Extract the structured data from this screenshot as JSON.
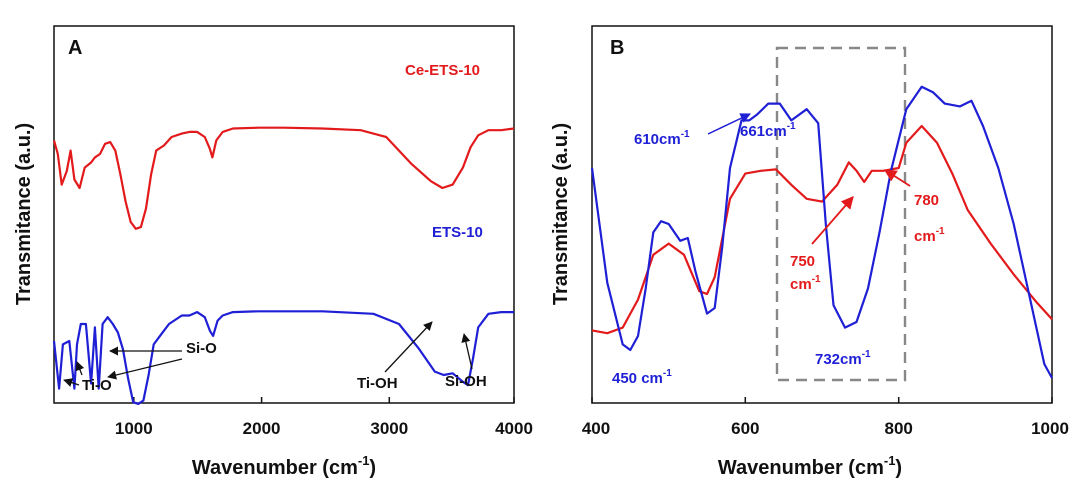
{
  "chart_data": [
    {
      "panel_label": "A",
      "type": "line",
      "xlabel": "Wavenumber (cm",
      "xlabel_sup": "-1",
      "xlabel_suffix": ")",
      "ylabel": "Transmitance (a.u.)",
      "xlim": [
        400,
        4000
      ],
      "xticks": [
        "1000",
        "2000",
        "3000",
        "4000"
      ],
      "colors": {
        "Ce-ETS-10": "#e31a1c",
        "ETS-10": "#1f1fd6"
      },
      "series": [
        {
          "name": "Ce-ETS-10",
          "points": [
            [
              400,
              0.52
            ],
            [
              430,
              0.6
            ],
            [
              460,
              0.78
            ],
            [
              500,
              0.7
            ],
            [
              530,
              0.58
            ],
            [
              560,
              0.75
            ],
            [
              600,
              0.8
            ],
            [
              640,
              0.68
            ],
            [
              690,
              0.65
            ],
            [
              720,
              0.62
            ],
            [
              760,
              0.6
            ],
            [
              800,
              0.54
            ],
            [
              840,
              0.53
            ],
            [
              880,
              0.58
            ],
            [
              920,
              0.72
            ],
            [
              960,
              0.88
            ],
            [
              1000,
              1.0
            ],
            [
              1040,
              1.04
            ],
            [
              1080,
              1.03
            ],
            [
              1120,
              0.92
            ],
            [
              1160,
              0.72
            ],
            [
              1200,
              0.58
            ],
            [
              1260,
              0.55
            ],
            [
              1320,
              0.5
            ],
            [
              1400,
              0.48
            ],
            [
              1460,
              0.47
            ],
            [
              1520,
              0.47
            ],
            [
              1580,
              0.5
            ],
            [
              1620,
              0.57
            ],
            [
              1640,
              0.62
            ],
            [
              1670,
              0.52
            ],
            [
              1720,
              0.47
            ],
            [
              1800,
              0.45
            ],
            [
              2000,
              0.445
            ],
            [
              2200,
              0.445
            ],
            [
              2500,
              0.45
            ],
            [
              2800,
              0.46
            ],
            [
              3000,
              0.5
            ],
            [
              3200,
              0.66
            ],
            [
              3350,
              0.76
            ],
            [
              3440,
              0.8
            ],
            [
              3520,
              0.78
            ],
            [
              3600,
              0.68
            ],
            [
              3660,
              0.56
            ],
            [
              3720,
              0.49
            ],
            [
              3800,
              0.46
            ],
            [
              3900,
              0.46
            ],
            [
              4000,
              0.45
            ]
          ]
        },
        {
          "name": "ETS-10",
          "points": [
            [
              400,
              1.7
            ],
            [
              440,
              1.98
            ],
            [
              470,
              1.72
            ],
            [
              520,
              1.7
            ],
            [
              560,
              1.98
            ],
            [
              580,
              1.72
            ],
            [
              610,
              1.6
            ],
            [
              650,
              1.6
            ],
            [
              690,
              1.95
            ],
            [
              720,
              1.62
            ],
            [
              750,
              1.98
            ],
            [
              780,
              1.6
            ],
            [
              820,
              1.56
            ],
            [
              860,
              1.6
            ],
            [
              900,
              1.65
            ],
            [
              940,
              1.75
            ],
            [
              980,
              1.92
            ],
            [
              1020,
              2.06
            ],
            [
              1060,
              2.07
            ],
            [
              1100,
              2.05
            ],
            [
              1140,
              1.9
            ],
            [
              1180,
              1.72
            ],
            [
              1240,
              1.66
            ],
            [
              1300,
              1.6
            ],
            [
              1400,
              1.55
            ],
            [
              1460,
              1.55
            ],
            [
              1520,
              1.53
            ],
            [
              1580,
              1.56
            ],
            [
              1620,
              1.64
            ],
            [
              1645,
              1.67
            ],
            [
              1680,
              1.58
            ],
            [
              1720,
              1.55
            ],
            [
              1800,
              1.53
            ],
            [
              2000,
              1.525
            ],
            [
              2500,
              1.525
            ],
            [
              2900,
              1.54
            ],
            [
              3100,
              1.6
            ],
            [
              3250,
              1.74
            ],
            [
              3380,
              1.88
            ],
            [
              3450,
              1.9
            ],
            [
              3520,
              1.89
            ],
            [
              3600,
              1.94
            ],
            [
              3640,
              1.96
            ],
            [
              3680,
              1.8
            ],
            [
              3720,
              1.62
            ],
            [
              3800,
              1.54
            ],
            [
              3900,
              1.53
            ],
            [
              4000,
              1.53
            ]
          ]
        }
      ],
      "annotations": [
        {
          "text": "Ce-ETS-10",
          "color": "#e31a1c"
        },
        {
          "text": "ETS-10",
          "color": "#1f1fd6"
        },
        {
          "text": "Si-O",
          "color": "#111"
        },
        {
          "text": "Ti-O",
          "color": "#111"
        },
        {
          "text": "Ti-OH",
          "color": "#111"
        },
        {
          "text": "Si-OH",
          "color": "#111"
        }
      ]
    },
    {
      "panel_label": "B",
      "type": "line",
      "xlabel": "Wavenumber (cm",
      "xlabel_sup": "-1",
      "xlabel_suffix": ")",
      "ylabel": "Transmitance (a.u.)",
      "xlim": [
        400,
        1000
      ],
      "xticks": [
        "400",
        "600",
        "800",
        "1000"
      ],
      "colors": {
        "Ce-ETS-10": "#e31a1c",
        "ETS-10": "#1f1fd6"
      },
      "series": [
        {
          "name": "Ce-ETS-10",
          "points": [
            [
              400,
              0.83
            ],
            [
              420,
              0.84
            ],
            [
              440,
              0.82
            ],
            [
              460,
              0.72
            ],
            [
              480,
              0.56
            ],
            [
              500,
              0.52
            ],
            [
              520,
              0.56
            ],
            [
              540,
              0.69
            ],
            [
              550,
              0.7
            ],
            [
              560,
              0.64
            ],
            [
              580,
              0.36
            ],
            [
              600,
              0.27
            ],
            [
              620,
              0.26
            ],
            [
              640,
              0.255
            ],
            [
              660,
              0.31
            ],
            [
              680,
              0.36
            ],
            [
              700,
              0.37
            ],
            [
              720,
              0.31
            ],
            [
              735,
              0.23
            ],
            [
              745,
              0.26
            ],
            [
              755,
              0.3
            ],
            [
              765,
              0.26
            ],
            [
              780,
              0.26
            ],
            [
              800,
              0.25
            ],
            [
              810,
              0.16
            ],
            [
              830,
              0.1
            ],
            [
              850,
              0.16
            ],
            [
              870,
              0.27
            ],
            [
              890,
              0.4
            ],
            [
              920,
              0.52
            ],
            [
              950,
              0.63
            ],
            [
              980,
              0.73
            ],
            [
              1000,
              0.79
            ]
          ]
        },
        {
          "name": "ETS-10",
          "points": [
            [
              400,
              0.25
            ],
            [
              420,
              0.66
            ],
            [
              440,
              0.88
            ],
            [
              450,
              0.9
            ],
            [
              460,
              0.85
            ],
            [
              470,
              0.68
            ],
            [
              480,
              0.48
            ],
            [
              490,
              0.44
            ],
            [
              500,
              0.45
            ],
            [
              515,
              0.51
            ],
            [
              525,
              0.5
            ],
            [
              535,
              0.62
            ],
            [
              550,
              0.77
            ],
            [
              560,
              0.75
            ],
            [
              570,
              0.53
            ],
            [
              580,
              0.25
            ],
            [
              595,
              0.08
            ],
            [
              605,
              0.08
            ],
            [
              615,
              0.06
            ],
            [
              630,
              0.02
            ],
            [
              645,
              0.02
            ],
            [
              660,
              0.08
            ],
            [
              680,
              0.04
            ],
            [
              695,
              0.09
            ],
            [
              705,
              0.45
            ],
            [
              715,
              0.74
            ],
            [
              730,
              0.82
            ],
            [
              745,
              0.8
            ],
            [
              760,
              0.68
            ],
            [
              775,
              0.48
            ],
            [
              790,
              0.26
            ],
            [
              810,
              0.04
            ],
            [
              830,
              -0.04
            ],
            [
              845,
              -0.02
            ],
            [
              860,
              0.02
            ],
            [
              880,
              0.03
            ],
            [
              895,
              0.01
            ],
            [
              910,
              0.1
            ],
            [
              930,
              0.25
            ],
            [
              950,
              0.45
            ],
            [
              970,
              0.7
            ],
            [
              990,
              0.95
            ],
            [
              1000,
              1.0
            ]
          ]
        }
      ],
      "annotations": [
        {
          "text": "610cm",
          "sup": "-1",
          "color": "#1f1fd6"
        },
        {
          "text": "661cm",
          "sup": "-1",
          "color": "#1f1fd6"
        },
        {
          "text": "450 cm",
          "sup": "-1",
          "color": "#1f1fd6"
        },
        {
          "text": "732cm",
          "sup": "-1",
          "color": "#1f1fd6"
        },
        {
          "text": "750",
          "color": "#e31a1c"
        },
        {
          "text": "cm",
          "sup": "-1",
          "color": "#e31a1c"
        },
        {
          "text": "780",
          "color": "#e31a1c"
        },
        {
          "text": "cm",
          "sup": "-1",
          "color": "#e31a1c"
        }
      ]
    }
  ]
}
